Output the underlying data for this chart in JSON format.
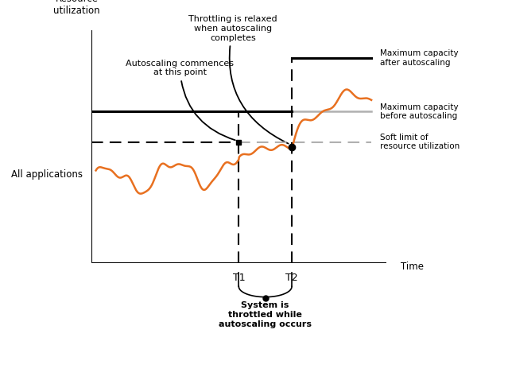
{
  "background_color": "#ffffff",
  "xlim": [
    0,
    10
  ],
  "ylim": [
    0,
    10
  ],
  "T1": 5.0,
  "T2": 6.8,
  "soft_limit_y": 5.2,
  "max_before_y": 6.5,
  "max_after_y": 8.8,
  "orange_color": "#E87020",
  "annotations": {
    "resource_utilization": "Resource\nutilization",
    "time": "Time",
    "all_applications": "All applications",
    "max_after": "Maximum capacity\nafter autoscaling",
    "max_before": "Maximum capacity\nbefore autoscaling",
    "soft_limit": "Soft limit of\nresource utilization",
    "throttling_relaxed": "Throttling is relaxed\nwhen autoscaling\ncompletes",
    "autoscaling_commences": "Autoscaling commences\nat this point",
    "system_throttled": "System is\nthrottled while\nautoscaling occurs"
  }
}
